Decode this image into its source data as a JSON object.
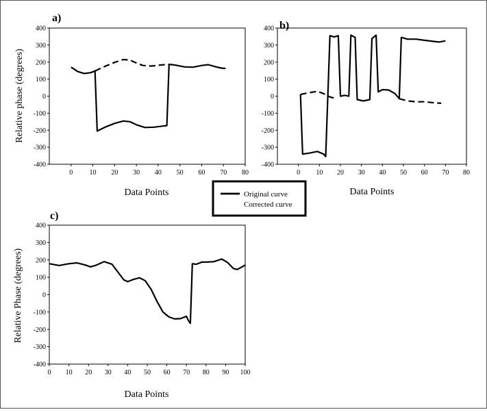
{
  "legend": {
    "entries": [
      {
        "label": "Original curve",
        "style": "solid"
      },
      {
        "label": "Corrected curve",
        "style": "none"
      }
    ]
  },
  "chart_data": [
    {
      "panel": "a)",
      "type": "line",
      "xlabel": "Data Points",
      "ylabel": "Relative phase (degrees)",
      "xlim": [
        -10,
        80
      ],
      "ylim": [
        -400,
        400
      ],
      "xticks": [
        0,
        10,
        20,
        30,
        40,
        50,
        60,
        70,
        80
      ],
      "yticks": [
        -400,
        -300,
        -200,
        -100,
        0,
        100,
        200,
        300,
        400
      ],
      "series": [
        {
          "style": "solid",
          "points": [
            [
              0,
              170
            ],
            [
              3,
              145
            ],
            [
              6,
              133
            ],
            [
              9,
              138
            ],
            [
              11,
              148
            ],
            [
              11,
              148
            ],
            [
              12,
              -205
            ],
            [
              16,
              -180
            ],
            [
              20,
              -160
            ],
            [
              24,
              -146
            ],
            [
              27,
              -150
            ],
            [
              30,
              -168
            ],
            [
              34,
              -184
            ],
            [
              38,
              -182
            ],
            [
              42,
              -176
            ],
            [
              44,
              -173
            ],
            [
              44,
              -173
            ],
            [
              45,
              187
            ],
            [
              48,
              182
            ],
            [
              52,
              172
            ],
            [
              56,
              170
            ],
            [
              60,
              180
            ],
            [
              63,
              185
            ],
            [
              66,
              174
            ],
            [
              69,
              165
            ],
            [
              71,
              163
            ]
          ]
        },
        {
          "style": "dashed",
          "points": [
            [
              11,
              148
            ],
            [
              15,
              172
            ],
            [
              20,
              198
            ],
            [
              24,
              215
            ],
            [
              27,
              212
            ],
            [
              30,
              195
            ],
            [
              33,
              180
            ],
            [
              37,
              177
            ],
            [
              41,
              183
            ],
            [
              45,
              187
            ]
          ]
        }
      ]
    },
    {
      "panel": "b)",
      "type": "line",
      "xlabel": "Data Points",
      "ylabel": "",
      "xlim": [
        -10,
        80
      ],
      "ylim": [
        -400,
        400
      ],
      "xticks": [
        0,
        10,
        20,
        30,
        40,
        50,
        60,
        70,
        80
      ],
      "yticks": [
        -400,
        -300,
        -200,
        -100,
        0,
        100,
        200,
        300,
        400
      ],
      "series": [
        {
          "style": "solid",
          "points": [
            [
              1,
              10
            ],
            [
              2,
              -340
            ],
            [
              5,
              -335
            ],
            [
              9,
              -325
            ],
            [
              12,
              -340
            ],
            [
              13,
              -355
            ],
            [
              13,
              -355
            ],
            [
              15,
              355
            ],
            [
              17,
              348
            ],
            [
              19,
              355
            ],
            [
              19,
              355
            ],
            [
              20,
              0
            ],
            [
              22,
              5
            ],
            [
              24,
              0
            ],
            [
              24,
              0
            ],
            [
              25,
              358
            ],
            [
              27,
              345
            ],
            [
              27,
              345
            ],
            [
              28,
              -20
            ],
            [
              31,
              -28
            ],
            [
              34,
              -20
            ],
            [
              34,
              -20
            ],
            [
              35,
              338
            ],
            [
              37,
              358
            ],
            [
              37,
              358
            ],
            [
              38,
              25
            ],
            [
              40,
              38
            ],
            [
              43,
              36
            ],
            [
              46,
              15
            ],
            [
              48,
              -15
            ],
            [
              48,
              -15
            ],
            [
              49,
              345
            ],
            [
              52,
              335
            ],
            [
              56,
              335
            ],
            [
              60,
              328
            ],
            [
              64,
              322
            ],
            [
              67,
              318
            ],
            [
              70,
              325
            ]
          ]
        },
        {
          "style": "dashed",
          "points": [
            [
              1,
              10
            ],
            [
              5,
              20
            ],
            [
              9,
              28
            ],
            [
              12,
              15
            ],
            [
              15,
              -5
            ],
            [
              18,
              -15
            ]
          ]
        },
        {
          "style": "dashed",
          "points": [
            [
              48,
              -15
            ],
            [
              52,
              -28
            ],
            [
              56,
              -33
            ],
            [
              60,
              -33
            ],
            [
              64,
              -38
            ],
            [
              68,
              -42
            ]
          ]
        }
      ]
    },
    {
      "panel": "c)",
      "type": "line",
      "xlabel": "Data Points",
      "ylabel": "Relative Phase (degrees)",
      "xlim": [
        0,
        100
      ],
      "ylim": [
        -400,
        400
      ],
      "xticks": [
        0,
        10,
        20,
        30,
        40,
        50,
        60,
        70,
        80,
        90,
        100
      ],
      "yticks": [
        -400,
        -300,
        -200,
        -100,
        0,
        100,
        200,
        300,
        400
      ],
      "series": [
        {
          "style": "solid",
          "points": [
            [
              0,
              178
            ],
            [
              5,
              168
            ],
            [
              10,
              178
            ],
            [
              14,
              183
            ],
            [
              18,
              172
            ],
            [
              21,
              160
            ],
            [
              24,
              170
            ],
            [
              28,
              190
            ],
            [
              32,
              175
            ],
            [
              35,
              130
            ],
            [
              38,
              85
            ],
            [
              40,
              75
            ],
            [
              43,
              88
            ],
            [
              46,
              97
            ],
            [
              49,
              80
            ],
            [
              52,
              30
            ],
            [
              55,
              -40
            ],
            [
              58,
              -100
            ],
            [
              61,
              -128
            ],
            [
              64,
              -140
            ],
            [
              67,
              -138
            ],
            [
              70,
              -125
            ],
            [
              71,
              -150
            ],
            [
              72,
              -165
            ],
            [
              73,
              178
            ],
            [
              75,
              175
            ],
            [
              78,
              188
            ],
            [
              80,
              187
            ],
            [
              84,
              190
            ],
            [
              88,
              205
            ],
            [
              91,
              185
            ],
            [
              94,
              150
            ],
            [
              96,
              145
            ],
            [
              100,
              170
            ]
          ]
        }
      ]
    }
  ]
}
